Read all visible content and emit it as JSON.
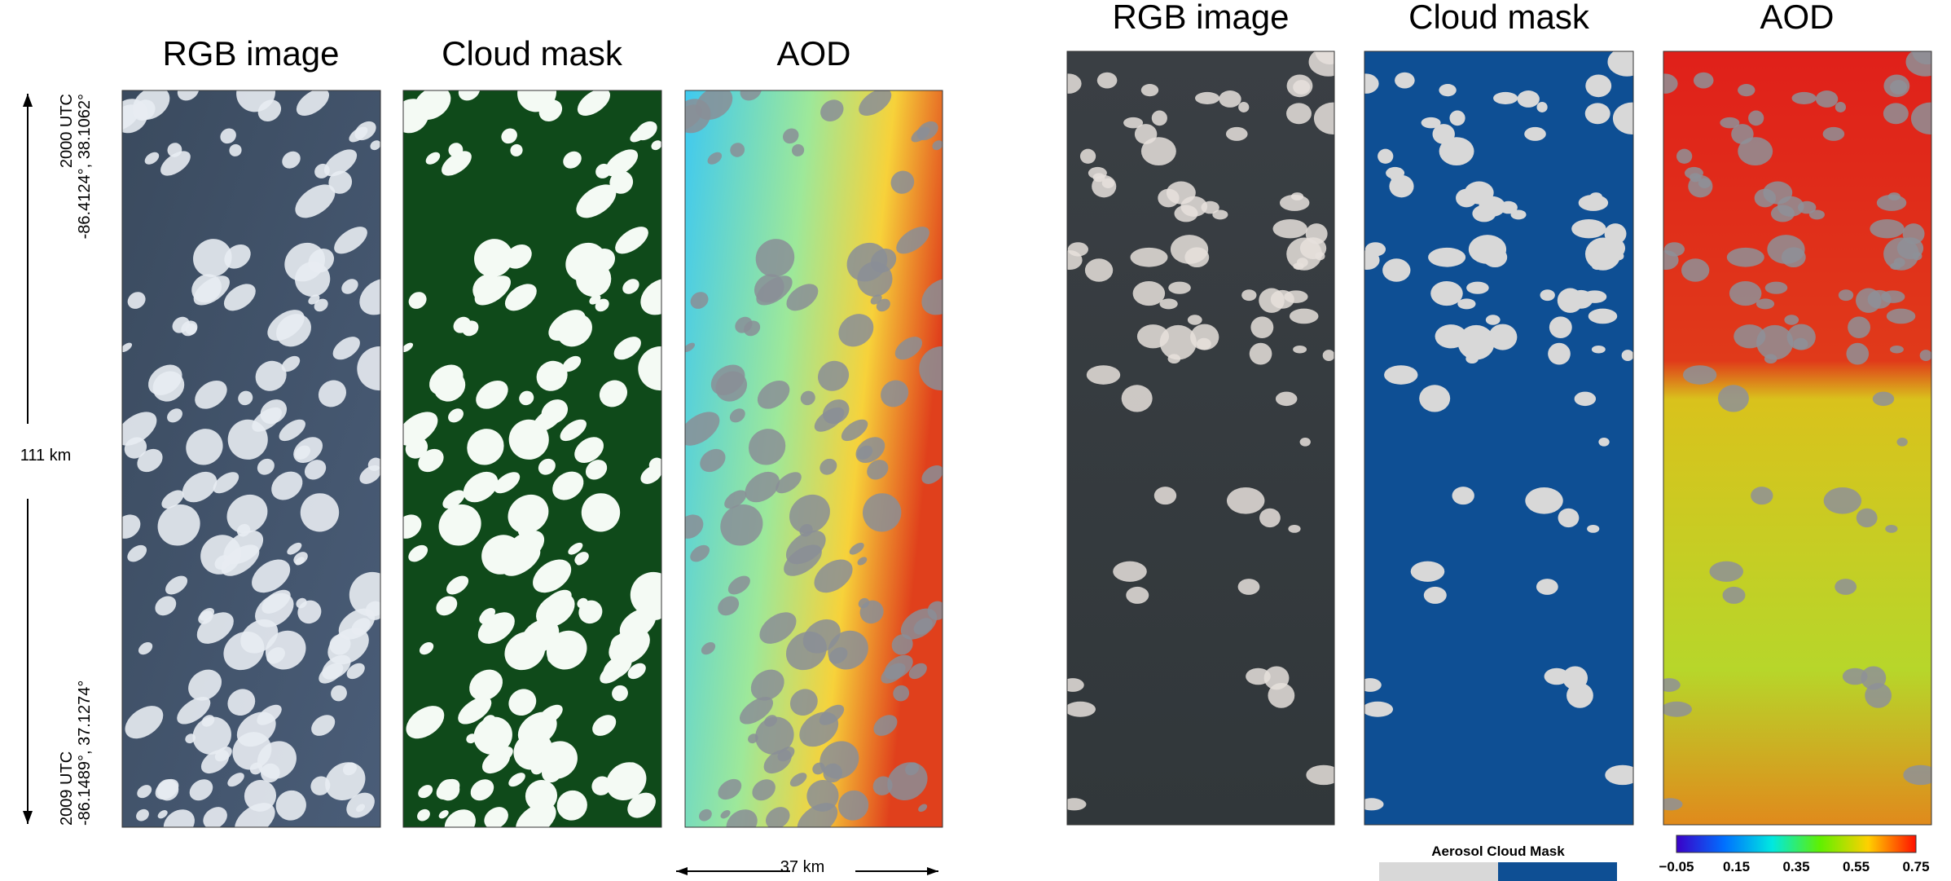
{
  "left": {
    "panels": [
      "RGB image",
      "Cloud mask",
      "AOD"
    ],
    "start_time": "2000 UTC",
    "start_coords": "-86.4124°, 38.1062°",
    "length": "111 km",
    "end_time": "2009 UTC",
    "end_coords": "-86.1489°, 37.1274°",
    "width": "37 km"
  },
  "right": {
    "panels": [
      "RGB image",
      "Cloud mask",
      "AOD"
    ],
    "mask_legend": "Aerosol Cloud Mask",
    "colorbar_ticks": [
      "−0.05",
      "0.15",
      "0.35",
      "0.55",
      "0.75"
    ]
  }
}
